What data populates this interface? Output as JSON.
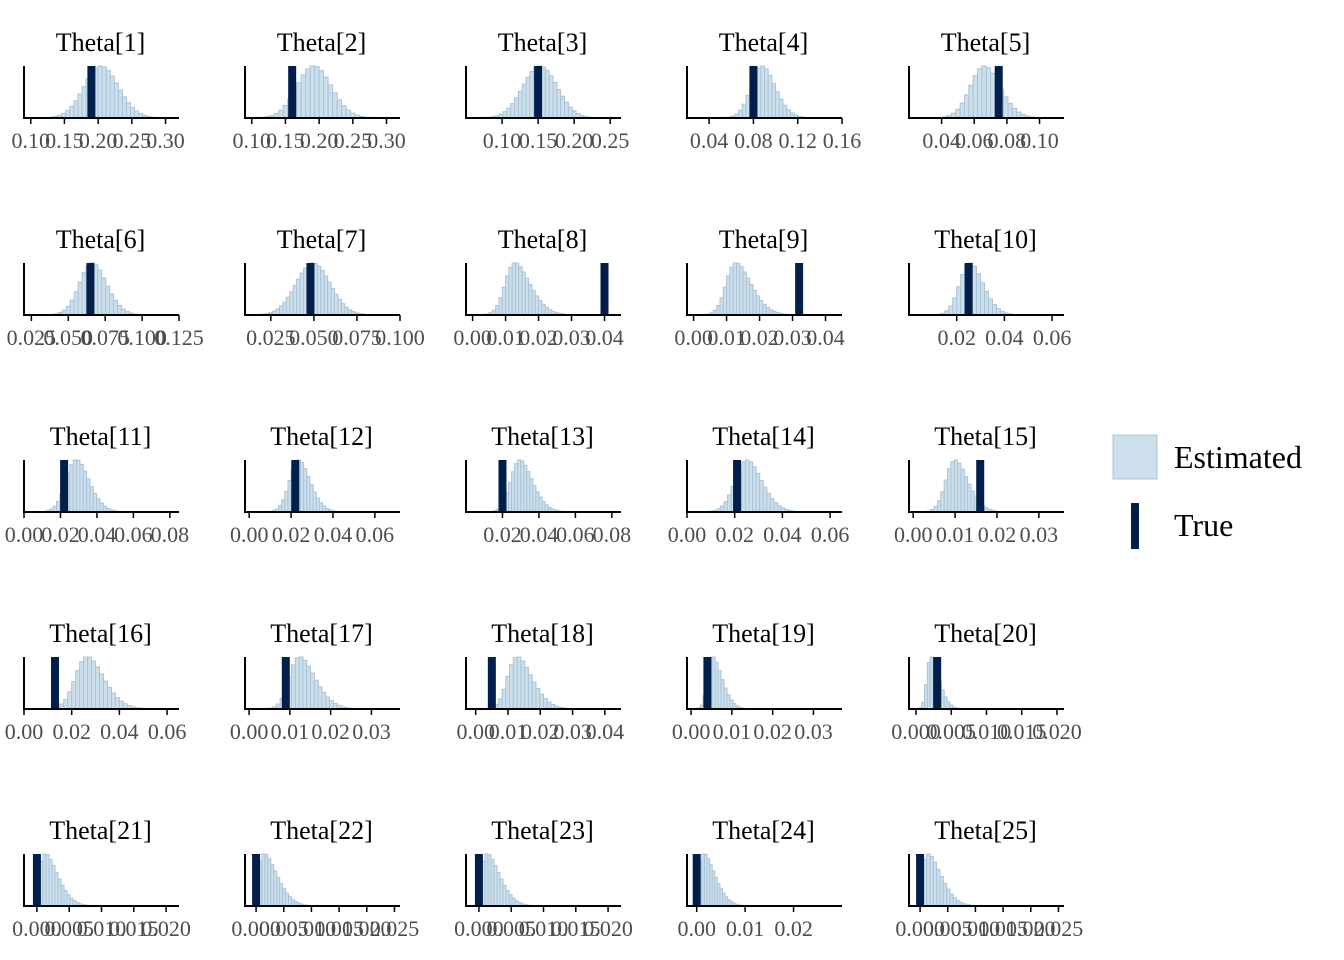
{
  "legend": {
    "estimated_label": "Estimated",
    "true_label": "True",
    "colors": {
      "estimated_fill": "#cddfea",
      "estimated_stroke": "#a9c4d8",
      "true": "#011f4b"
    }
  },
  "chart_data": [
    {
      "type": "bar",
      "title": "Theta[1]",
      "xlim": [
        0.09,
        0.32
      ],
      "ticks": [
        0.1,
        0.15,
        0.2,
        0.25,
        0.3
      ],
      "tick_labels": [
        "0.10",
        "0.15",
        "0.20",
        "0.25",
        "0.30"
      ],
      "mean": 0.19,
      "sd": 0.03,
      "skew": 0.2,
      "true": 0.19,
      "hist_range": [
        0.11,
        0.29
      ]
    },
    {
      "type": "bar",
      "title": "Theta[2]",
      "xlim": [
        0.09,
        0.32
      ],
      "ticks": [
        0.1,
        0.15,
        0.2,
        0.25,
        0.3
      ],
      "tick_labels": [
        "0.10",
        "0.15",
        "0.20",
        "0.25",
        "0.30"
      ],
      "mean": 0.178,
      "sd": 0.03,
      "skew": 0.2,
      "true": 0.16,
      "hist_range": [
        0.1,
        0.3
      ]
    },
    {
      "type": "bar",
      "title": "Theta[3]",
      "xlim": [
        0.05,
        0.265
      ],
      "ticks": [
        0.1,
        0.15,
        0.2,
        0.25
      ],
      "tick_labels": [
        "0.10",
        "0.15",
        "0.20",
        "0.25"
      ],
      "mean": 0.145,
      "sd": 0.025,
      "skew": 0.1,
      "true": 0.15,
      "hist_range": [
        0.08,
        0.24
      ]
    },
    {
      "type": "bar",
      "title": "Theta[4]",
      "xlim": [
        0.02,
        0.16
      ],
      "ticks": [
        0.04,
        0.08,
        0.12,
        0.16
      ],
      "tick_labels": [
        "0.04",
        "0.08",
        "0.12",
        "0.16"
      ],
      "mean": 0.08,
      "sd": 0.015,
      "skew": 0.35,
      "true": 0.08,
      "hist_range": [
        0.04,
        0.14
      ]
    },
    {
      "type": "bar",
      "title": "Theta[5]",
      "xlim": [
        0.02,
        0.115
      ],
      "ticks": [
        0.04,
        0.06,
        0.08,
        0.1
      ],
      "tick_labels": [
        "0.04",
        "0.06",
        "0.08",
        "0.10"
      ],
      "mean": 0.06,
      "sd": 0.012,
      "skew": 0.3,
      "true": 0.075,
      "hist_range": [
        0.03,
        0.11
      ]
    },
    {
      "type": "bar",
      "title": "Theta[6]",
      "xlim": [
        0.02,
        0.125
      ],
      "ticks": [
        0.025,
        0.05,
        0.075,
        0.1,
        0.125
      ],
      "tick_labels": [
        "0.025",
        "0.050",
        "0.075",
        "0.100",
        "0.125"
      ],
      "mean": 0.06,
      "sd": 0.012,
      "skew": 0.3,
      "true": 0.065,
      "hist_range": [
        0.03,
        0.11
      ]
    },
    {
      "type": "bar",
      "title": "Theta[7]",
      "xlim": [
        0.01,
        0.1
      ],
      "ticks": [
        0.025,
        0.05,
        0.075,
        0.1
      ],
      "tick_labels": [
        "0.025",
        "0.050",
        "0.075",
        "0.100"
      ],
      "mean": 0.045,
      "sd": 0.011,
      "skew": 0.15,
      "true": 0.048,
      "hist_range": [
        0.02,
        0.08
      ]
    },
    {
      "type": "bar",
      "title": "Theta[8]",
      "xlim": [
        -0.002,
        0.045
      ],
      "ticks": [
        0.0,
        0.01,
        0.02,
        0.03,
        0.04
      ],
      "tick_labels": [
        "0.00",
        "0.01",
        "0.02",
        "0.03",
        "0.04"
      ],
      "mean": 0.01,
      "sd": 0.006,
      "skew": 0.6,
      "true": 0.04,
      "hist_range": [
        0.0,
        0.03
      ]
    },
    {
      "type": "bar",
      "title": "Theta[9]",
      "xlim": [
        -0.002,
        0.045
      ],
      "ticks": [
        0.0,
        0.01,
        0.02,
        0.03,
        0.04
      ],
      "tick_labels": [
        "0.00",
        "0.01",
        "0.02",
        "0.03",
        "0.04"
      ],
      "mean": 0.01,
      "sd": 0.006,
      "skew": 0.6,
      "true": 0.032,
      "hist_range": [
        0.0,
        0.03
      ]
    },
    {
      "type": "bar",
      "title": "Theta[10]",
      "xlim": [
        0.0,
        0.065
      ],
      "ticks": [
        0.02,
        0.04,
        0.06
      ],
      "tick_labels": [
        "0.02",
        "0.04",
        "0.06"
      ],
      "mean": 0.022,
      "sd": 0.007,
      "skew": 0.4,
      "true": 0.025,
      "hist_range": [
        0.005,
        0.055
      ]
    },
    {
      "type": "bar",
      "title": "Theta[11]",
      "xlim": [
        0.0,
        0.085
      ],
      "ticks": [
        0.0,
        0.02,
        0.04,
        0.06,
        0.08
      ],
      "tick_labels": [
        "0.00",
        "0.02",
        "0.04",
        "0.06",
        "0.08"
      ],
      "mean": 0.024,
      "sd": 0.009,
      "skew": 0.4,
      "true": 0.022,
      "hist_range": [
        0.005,
        0.06
      ]
    },
    {
      "type": "bar",
      "title": "Theta[12]",
      "xlim": [
        -0.002,
        0.072
      ],
      "ticks": [
        0.0,
        0.02,
        0.04,
        0.06
      ],
      "tick_labels": [
        "0.00",
        "0.02",
        "0.04",
        "0.06"
      ],
      "mean": 0.02,
      "sd": 0.007,
      "skew": 0.4,
      "true": 0.022,
      "hist_range": [
        0.005,
        0.05
      ]
    },
    {
      "type": "bar",
      "title": "Theta[13]",
      "xlim": [
        0.0,
        0.085
      ],
      "ticks": [
        0.02,
        0.04,
        0.06,
        0.08
      ],
      "tick_labels": [
        "0.02",
        "0.04",
        "0.06",
        "0.08"
      ],
      "mean": 0.025,
      "sd": 0.009,
      "skew": 0.5,
      "true": 0.02,
      "hist_range": [
        0.01,
        0.06
      ]
    },
    {
      "type": "bar",
      "title": "Theta[14]",
      "xlim": [
        0.0,
        0.065
      ],
      "ticks": [
        0.0,
        0.02,
        0.04,
        0.06
      ],
      "tick_labels": [
        "0.00",
        "0.02",
        "0.04",
        "0.06"
      ],
      "mean": 0.021,
      "sd": 0.008,
      "skew": 0.4,
      "true": 0.021,
      "hist_range": [
        0.005,
        0.05
      ]
    },
    {
      "type": "bar",
      "title": "Theta[15]",
      "xlim": [
        -0.001,
        0.036
      ],
      "ticks": [
        0.0,
        0.01,
        0.02,
        0.03
      ],
      "tick_labels": [
        "0.00",
        "0.01",
        "0.02",
        "0.03"
      ],
      "mean": 0.008,
      "sd": 0.004,
      "skew": 0.5,
      "true": 0.016,
      "hist_range": [
        0.001,
        0.025
      ]
    },
    {
      "type": "bar",
      "title": "Theta[16]",
      "xlim": [
        0.0,
        0.065
      ],
      "ticks": [
        0.0,
        0.02,
        0.04,
        0.06
      ],
      "tick_labels": [
        "0.00",
        "0.02",
        "0.04",
        "0.06"
      ],
      "mean": 0.022,
      "sd": 0.009,
      "skew": 0.5,
      "true": 0.013,
      "hist_range": [
        0.005,
        0.055
      ]
    },
    {
      "type": "bar",
      "title": "Theta[17]",
      "xlim": [
        -0.001,
        0.037
      ],
      "ticks": [
        0.0,
        0.01,
        0.02,
        0.03
      ],
      "tick_labels": [
        "0.00",
        "0.01",
        "0.02",
        "0.03"
      ],
      "mean": 0.01,
      "sd": 0.005,
      "skew": 0.6,
      "true": 0.009,
      "hist_range": [
        0.002,
        0.03
      ]
    },
    {
      "type": "bar",
      "title": "Theta[18]",
      "xlim": [
        -0.003,
        0.045
      ],
      "ticks": [
        0.0,
        0.01,
        0.02,
        0.03,
        0.04
      ],
      "tick_labels": [
        "0.00",
        "0.01",
        "0.02",
        "0.03",
        "0.04"
      ],
      "mean": 0.01,
      "sd": 0.006,
      "skew": 0.6,
      "true": 0.005,
      "hist_range": [
        0.0,
        0.035
      ]
    },
    {
      "type": "bar",
      "title": "Theta[19]",
      "xlim": [
        -0.001,
        0.037
      ],
      "ticks": [
        0.0,
        0.01,
        0.02,
        0.03
      ],
      "tick_labels": [
        "0.00",
        "0.01",
        "0.02",
        "0.03"
      ],
      "mean": 0.004,
      "sd": 0.003,
      "skew": 0.8,
      "true": 0.004,
      "hist_range": [
        0.0,
        0.022
      ]
    },
    {
      "type": "bar",
      "title": "Theta[20]",
      "xlim": [
        -0.001,
        0.021
      ],
      "ticks": [
        0.0,
        0.005,
        0.01,
        0.015,
        0.02
      ],
      "tick_labels": [
        "0.000",
        "0.005",
        "0.010",
        "0.015",
        "0.020"
      ],
      "mean": 0.0015,
      "sd": 0.0015,
      "skew": 0.9,
      "true": 0.003,
      "hist_range": [
        0.0,
        0.012
      ]
    },
    {
      "type": "bar",
      "title": "Theta[21]",
      "xlim": [
        -0.002,
        0.022
      ],
      "ticks": [
        0.0,
        0.005,
        0.01,
        0.015,
        0.02
      ],
      "tick_labels": [
        "0.000",
        "0.005",
        "0.010",
        "0.015",
        "0.020"
      ],
      "mean": 0.0003,
      "sd": 0.0025,
      "skew": 0.95,
      "true": 0.0,
      "hist_range": [
        0.0,
        0.014
      ]
    },
    {
      "type": "bar",
      "title": "Theta[22]",
      "xlim": [
        -0.002,
        0.026
      ],
      "ticks": [
        0.0,
        0.005,
        0.01,
        0.015,
        0.02,
        0.025
      ],
      "tick_labels": [
        "0.000",
        "0.005",
        "0.010",
        "0.015",
        "0.020",
        "0.025"
      ],
      "mean": 0.0003,
      "sd": 0.003,
      "skew": 0.95,
      "true": 0.0,
      "hist_range": [
        0.0,
        0.016
      ]
    },
    {
      "type": "bar",
      "title": "Theta[23]",
      "xlim": [
        -0.002,
        0.022
      ],
      "ticks": [
        0.0,
        0.005,
        0.01,
        0.015,
        0.02
      ],
      "tick_labels": [
        "0.000",
        "0.005",
        "0.010",
        "0.015",
        "0.020"
      ],
      "mean": 0.0003,
      "sd": 0.0025,
      "skew": 0.95,
      "true": 0.0,
      "hist_range": [
        0.0,
        0.014
      ]
    },
    {
      "type": "bar",
      "title": "Theta[24]",
      "xlim": [
        -0.002,
        0.03
      ],
      "ticks": [
        0.0,
        0.01,
        0.02
      ],
      "tick_labels": [
        "0.00",
        "0.01",
        "0.02"
      ],
      "mean": 0.0003,
      "sd": 0.003,
      "skew": 0.95,
      "true": 0.0,
      "hist_range": [
        0.0,
        0.016
      ]
    },
    {
      "type": "bar",
      "title": "Theta[25]",
      "xlim": [
        -0.002,
        0.026
      ],
      "ticks": [
        0.0,
        0.005,
        0.01,
        0.015,
        0.02,
        0.025
      ],
      "tick_labels": [
        "0.000",
        "0.005",
        "0.010",
        "0.015",
        "0.020",
        "0.025"
      ],
      "mean": 0.0003,
      "sd": 0.003,
      "skew": 0.95,
      "true": 0.0,
      "hist_range": [
        0.0,
        0.018
      ]
    }
  ]
}
